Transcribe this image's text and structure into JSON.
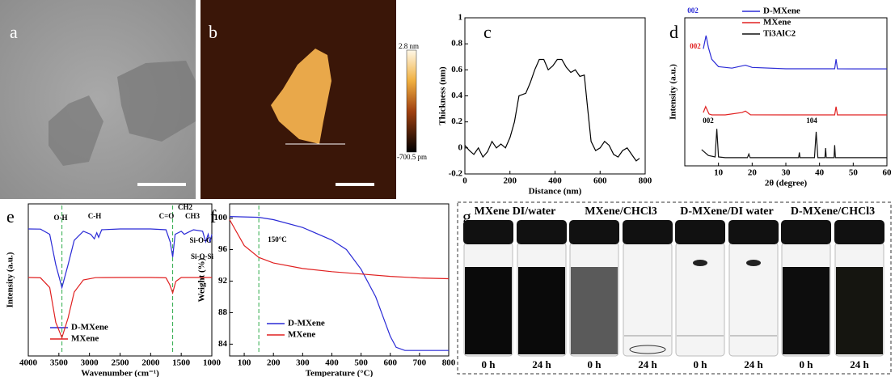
{
  "images": [
    {
      "label": "a"
    },
    {
      "label": "b",
      "colorbar_max": "2.8 nm",
      "colorbar_min": "-700.5 pm"
    },
    {
      "label": "g",
      "samples": [
        "MXene DI/water",
        "MXene/CHCl3",
        "D-MXene/DI water",
        "D-MXene/CHCl3"
      ],
      "times": [
        "0 h",
        "24 h"
      ]
    }
  ],
  "chart_data": [
    {
      "type": "line",
      "label": "c",
      "xlabel": "Distance (nm)",
      "ylabel": "Thickness (nm)",
      "xlim": [
        0,
        800
      ],
      "ylim": [
        -0.2,
        1.0
      ],
      "xticks": [
        0,
        200,
        400,
        600,
        800
      ],
      "yticks": [
        -0.2,
        0.0,
        0.2,
        0.4,
        0.6,
        0.8,
        1.0
      ],
      "series": [
        {
          "color": "#000000",
          "x": [
            0,
            20,
            40,
            60,
            80,
            100,
            120,
            140,
            160,
            180,
            200,
            220,
            240,
            270,
            290,
            310,
            330,
            350,
            370,
            390,
            410,
            430,
            450,
            470,
            490,
            510,
            530,
            545,
            560,
            580,
            600,
            620,
            640,
            660,
            680,
            700,
            720,
            740,
            760,
            775
          ],
          "values": [
            0.02,
            -0.02,
            -0.05,
            0.0,
            -0.07,
            -0.03,
            0.05,
            0.0,
            0.03,
            0.0,
            0.08,
            0.2,
            0.4,
            0.42,
            0.5,
            0.6,
            0.68,
            0.68,
            0.6,
            0.63,
            0.68,
            0.68,
            0.62,
            0.58,
            0.6,
            0.55,
            0.56,
            0.3,
            0.05,
            -0.02,
            0.0,
            0.05,
            0.02,
            -0.05,
            -0.07,
            -0.02,
            0.0,
            -0.05,
            -0.1,
            -0.08
          ]
        }
      ]
    },
    {
      "type": "line",
      "label": "d",
      "xlabel": "2θ (degree)",
      "ylabel": "Intensity (a.u.)",
      "xlim": [
        0,
        60
      ],
      "ylim": [
        0,
        1
      ],
      "xticks": [
        10,
        20,
        30,
        40,
        50,
        60
      ],
      "series": [
        {
          "name": "D-MXene",
          "color": "#2b2bd6",
          "x": [
            5.5,
            6.3,
            7,
            8,
            10,
            14,
            18,
            20,
            30,
            40,
            44.5,
            44.9,
            45.3,
            50,
            60
          ],
          "values": [
            0.79,
            0.88,
            0.8,
            0.72,
            0.67,
            0.66,
            0.68,
            0.665,
            0.656,
            0.656,
            0.656,
            0.72,
            0.656,
            0.655,
            0.655
          ]
        },
        {
          "name": "MXene",
          "color": "#e02020",
          "x": [
            5.5,
            6.2,
            6.6,
            7.2,
            8,
            12,
            17,
            18,
            19.5,
            30,
            44.5,
            44.9,
            45.3,
            60
          ],
          "values": [
            0.36,
            0.4,
            0.38,
            0.35,
            0.344,
            0.344,
            0.36,
            0.37,
            0.345,
            0.344,
            0.344,
            0.4,
            0.344,
            0.344
          ]
        },
        {
          "name": "Ti3AlC2",
          "color": "#111111",
          "x": [
            5,
            7,
            9,
            9.5,
            10,
            12,
            18.6,
            19,
            19.4,
            25,
            33.8,
            34,
            34.2,
            38.5,
            39,
            39.5,
            41.6,
            41.8,
            42,
            44.3,
            44.5,
            44.7,
            50,
            60
          ],
          "values": [
            0.11,
            0.07,
            0.06,
            0.25,
            0.06,
            0.055,
            0.055,
            0.08,
            0.055,
            0.055,
            0.055,
            0.09,
            0.055,
            0.055,
            0.23,
            0.055,
            0.055,
            0.12,
            0.055,
            0.055,
            0.14,
            0.055,
            0.055,
            0.055
          ]
        }
      ],
      "annotations": [
        "002",
        "002",
        "002",
        "104"
      ]
    },
    {
      "type": "line",
      "label": "e",
      "xlabel": "Wavenumber (cm⁻¹)",
      "ylabel": "Intensity (a.u.)",
      "xlim": [
        4000,
        1000
      ],
      "ylim": [
        0,
        1
      ],
      "xticks": [
        4000,
        3500,
        3000,
        2500,
        2000,
        1500,
        1000
      ],
      "vlines": [
        3450,
        1640
      ],
      "series": [
        {
          "name": "D-MXene",
          "color": "#2b2bd6",
          "x": [
            4000,
            3800,
            3650,
            3550,
            3450,
            3350,
            3250,
            3100,
            2980,
            2920,
            2880,
            2850,
            2800,
            2500,
            2000,
            1750,
            1680,
            1640,
            1600,
            1500,
            1450,
            1400,
            1300,
            1150,
            1100,
            1060,
            1030,
            1000
          ],
          "values": [
            0.835,
            0.834,
            0.8,
            0.6,
            0.45,
            0.6,
            0.76,
            0.82,
            0.8,
            0.77,
            0.81,
            0.78,
            0.83,
            0.835,
            0.835,
            0.83,
            0.75,
            0.65,
            0.8,
            0.82,
            0.8,
            0.81,
            0.83,
            0.82,
            0.75,
            0.8,
            0.745,
            0.8
          ]
        },
        {
          "name": "MXene",
          "color": "#e02020",
          "x": [
            4000,
            3800,
            3650,
            3550,
            3450,
            3350,
            3250,
            3100,
            2900,
            2500,
            2000,
            1750,
            1690,
            1640,
            1590,
            1500,
            1000
          ],
          "values": [
            0.516,
            0.514,
            0.45,
            0.22,
            0.12,
            0.25,
            0.42,
            0.5,
            0.515,
            0.516,
            0.516,
            0.514,
            0.47,
            0.415,
            0.49,
            0.516,
            0.516
          ]
        }
      ],
      "annotations": [
        "O-H",
        "C-H",
        "C=O",
        "CH2",
        "CH3",
        "Si-O-C",
        "Si-O-Si"
      ]
    },
    {
      "type": "line",
      "label": "f",
      "xlabel": "Temperature (°C)",
      "ylabel": "Weight (%)",
      "xlim": [
        50,
        800
      ],
      "ylim": [
        82.5,
        101.8
      ],
      "xticks": [
        100,
        200,
        300,
        400,
        500,
        600,
        700,
        800
      ],
      "yticks": [
        84,
        88,
        92,
        96,
        100
      ],
      "vlines": [
        150
      ],
      "series": [
        {
          "name": "D-MXene",
          "color": "#2b2bd6",
          "x": [
            50,
            150,
            200,
            300,
            400,
            450,
            500,
            550,
            580,
            600,
            620,
            650,
            800
          ],
          "values": [
            100.2,
            100.1,
            99.8,
            98.8,
            97.2,
            96,
            93.5,
            90,
            87,
            85,
            83.6,
            83.2,
            83.2
          ]
        },
        {
          "name": "MXene",
          "color": "#e02020",
          "x": [
            50,
            100,
            150,
            200,
            300,
            400,
            500,
            600,
            700,
            800
          ],
          "values": [
            99.8,
            96.5,
            95,
            94.3,
            93.6,
            93.2,
            92.9,
            92.6,
            92.4,
            92.3
          ]
        }
      ],
      "annotations": [
        "150°C"
      ]
    }
  ]
}
